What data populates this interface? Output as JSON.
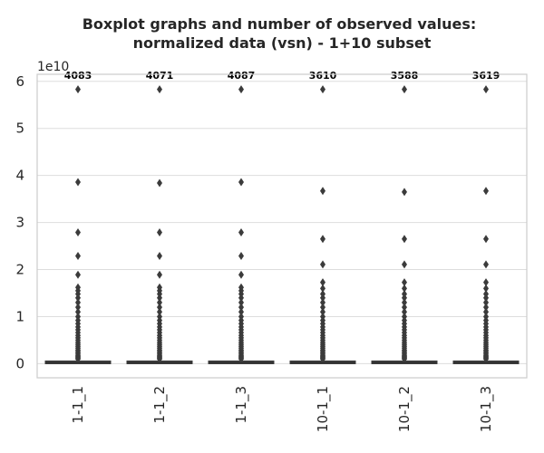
{
  "chart_data": {
    "type": "boxplot",
    "title_line1": "Boxplot graphs and number of observed values:",
    "title_line2": "normalized data (vsn) - 1+10 subset",
    "xlabel": "",
    "ylabel": "",
    "y_offset_label": "1e10",
    "ylim": [
      -0.3,
      6.15
    ],
    "yticks": [
      0,
      1,
      2,
      3,
      4,
      5,
      6
    ],
    "grid": true,
    "categories": [
      "1-1_1",
      "1-1_2",
      "1-1_3",
      "10-1_1",
      "10-1_2",
      "10-1_3"
    ],
    "counts": [
      "4083",
      "4071",
      "4087",
      "3610",
      "3588",
      "3619"
    ],
    "box_color": "#3b3b3b",
    "grid_color": "#dddddd",
    "boxes": [
      {
        "name": "1-1_1",
        "min": 0,
        "q1": 0,
        "median": 0.01,
        "q3": 0.04,
        "max": 0.09,
        "outliers": [
          5.83,
          3.86,
          2.79,
          2.29,
          1.89,
          1.62,
          1.55,
          1.48,
          1.4,
          1.3,
          1.2,
          1.1,
          1.0,
          0.92,
          0.85,
          0.78,
          0.72,
          0.66,
          0.6,
          0.55,
          0.5,
          0.45,
          0.41,
          0.37,
          0.33,
          0.29,
          0.26,
          0.23,
          0.2,
          0.17,
          0.15,
          0.13,
          0.11,
          0.1
        ]
      },
      {
        "name": "1-1_2",
        "min": 0,
        "q1": 0,
        "median": 0.01,
        "q3": 0.04,
        "max": 0.09,
        "outliers": [
          5.83,
          3.84,
          2.79,
          2.29,
          1.89,
          1.62,
          1.55,
          1.48,
          1.4,
          1.3,
          1.2,
          1.1,
          1.0,
          0.92,
          0.85,
          0.78,
          0.72,
          0.66,
          0.6,
          0.55,
          0.5,
          0.45,
          0.41,
          0.37,
          0.33,
          0.29,
          0.26,
          0.23,
          0.2,
          0.17,
          0.15,
          0.13,
          0.11,
          0.1
        ]
      },
      {
        "name": "1-1_3",
        "min": 0,
        "q1": 0,
        "median": 0.01,
        "q3": 0.04,
        "max": 0.09,
        "outliers": [
          5.83,
          3.86,
          2.79,
          2.29,
          1.89,
          1.62,
          1.55,
          1.48,
          1.4,
          1.3,
          1.2,
          1.1,
          1.0,
          0.92,
          0.85,
          0.78,
          0.72,
          0.66,
          0.6,
          0.55,
          0.5,
          0.45,
          0.41,
          0.37,
          0.33,
          0.29,
          0.26,
          0.23,
          0.2,
          0.17,
          0.15,
          0.13,
          0.11,
          0.1
        ]
      },
      {
        "name": "10-1_1",
        "min": 0,
        "q1": 0,
        "median": 0.01,
        "q3": 0.04,
        "max": 0.09,
        "outliers": [
          5.83,
          3.67,
          2.65,
          2.11,
          1.73,
          1.6,
          1.48,
          1.4,
          1.3,
          1.2,
          1.1,
          1.0,
          0.92,
          0.85,
          0.78,
          0.72,
          0.66,
          0.6,
          0.55,
          0.5,
          0.45,
          0.41,
          0.37,
          0.33,
          0.29,
          0.26,
          0.23,
          0.2,
          0.17,
          0.15,
          0.13,
          0.11,
          0.1
        ]
      },
      {
        "name": "10-1_2",
        "min": 0,
        "q1": 0,
        "median": 0.01,
        "q3": 0.04,
        "max": 0.09,
        "outliers": [
          5.83,
          3.65,
          2.65,
          2.11,
          1.73,
          1.6,
          1.48,
          1.4,
          1.3,
          1.2,
          1.1,
          1.0,
          0.92,
          0.85,
          0.78,
          0.72,
          0.66,
          0.6,
          0.55,
          0.5,
          0.45,
          0.41,
          0.37,
          0.33,
          0.29,
          0.26,
          0.23,
          0.2,
          0.17,
          0.15,
          0.13,
          0.11,
          0.1
        ]
      },
      {
        "name": "10-1_3",
        "min": 0,
        "q1": 0,
        "median": 0.01,
        "q3": 0.04,
        "max": 0.09,
        "outliers": [
          5.83,
          3.67,
          2.65,
          2.11,
          1.73,
          1.6,
          1.48,
          1.4,
          1.3,
          1.2,
          1.1,
          1.0,
          0.92,
          0.85,
          0.78,
          0.72,
          0.66,
          0.6,
          0.55,
          0.5,
          0.45,
          0.41,
          0.37,
          0.33,
          0.29,
          0.26,
          0.23,
          0.2,
          0.17,
          0.15,
          0.13,
          0.11,
          0.1
        ]
      }
    ]
  }
}
